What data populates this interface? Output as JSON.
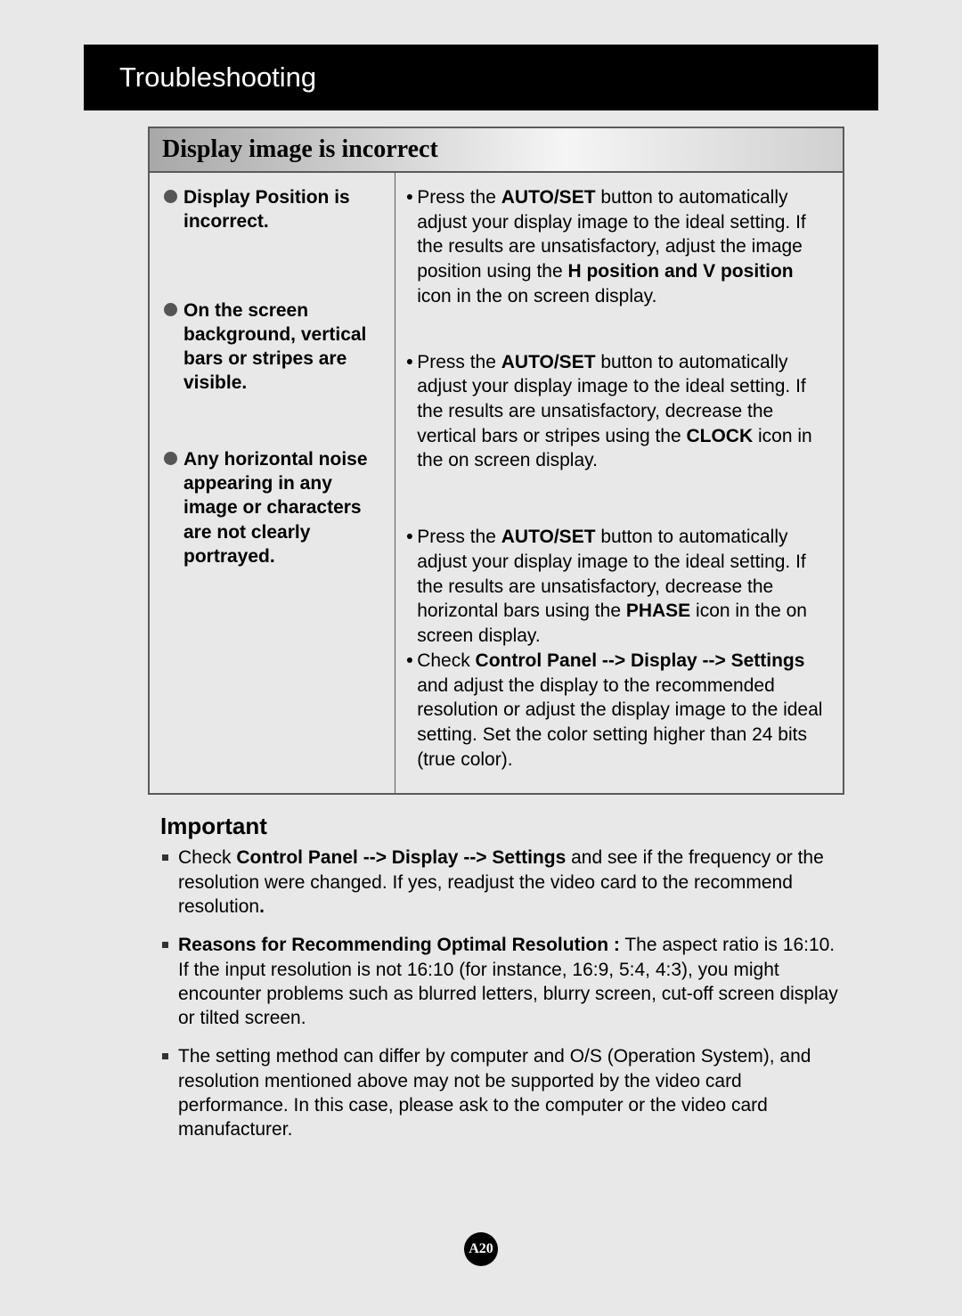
{
  "header": {
    "title": "Troubleshooting"
  },
  "table": {
    "title": "Display image is incorrect",
    "rows": [
      {
        "problem": "Display Position is incorrect.",
        "solution_html": "Press the <b>AUTO/SET</b> button to automatically adjust your display image to the ideal setting. If the results are unsatisfactory, adjust the image position using the <b>H position and V position</b> icon in the on screen display."
      },
      {
        "problem": "On the screen background, vertical bars or stripes are visible.",
        "solution_html": "Press the <b>AUTO/SET</b> button to automatically adjust your display image to the ideal setting. If the results are unsatisfactory, decrease the vertical bars or stripes using the <b>CLOCK</b> icon in the on screen display."
      },
      {
        "problem": "Any horizontal noise appearing in any image or characters are not clearly portrayed.",
        "solution_html": "Press the <b>AUTO/SET</b> button to automatically adjust your display image to the ideal setting. If the results are unsatisfactory, decrease the horizontal bars using the <b>PHASE</b> icon in the on screen display.",
        "solution2_html": "Check <b>Control Panel --> Display --> Settings</b> and adjust the display to the recommended resolution or adjust the display image to the ideal setting. Set the color setting higher than 24 bits (true color)."
      }
    ]
  },
  "important": {
    "title": "Important",
    "items": [
      {
        "html": "Check <b>Control Panel --> Display --> Settings</b> and see if the frequency or the resolution were changed. If yes, readjust the video card to the recommend resolution<b>.</b>"
      },
      {
        "html": "<b>Reasons for Recommending Optimal Resolution :</b> The aspect ratio is 16:10. If the input resolution is not 16:10 (for instance, 16:9, 5:4, 4:3), you might encounter problems such as blurred letters, blurry screen, cut-off screen display or tilted screen."
      },
      {
        "html": "The setting method can differ by computer and O/S (Operation System), and resolution mentioned above may not be supported by the video card performance. In this case, please ask to the computer or the video card manufacturer."
      }
    ]
  },
  "page_number": "A20",
  "colors": {
    "page_bg": "#e8e8e8",
    "header_bg": "#000000",
    "header_text": "#ffffff",
    "border": "#5a5a5a",
    "bullet": "#555555",
    "square_bullet": "#333333"
  },
  "typography": {
    "body_font": "Arial, Helvetica, sans-serif",
    "title_font": "Times New Roman, serif",
    "header_fontsize": 31,
    "table_title_fontsize": 28,
    "body_fontsize": 21,
    "important_title_fontsize": 26
  }
}
